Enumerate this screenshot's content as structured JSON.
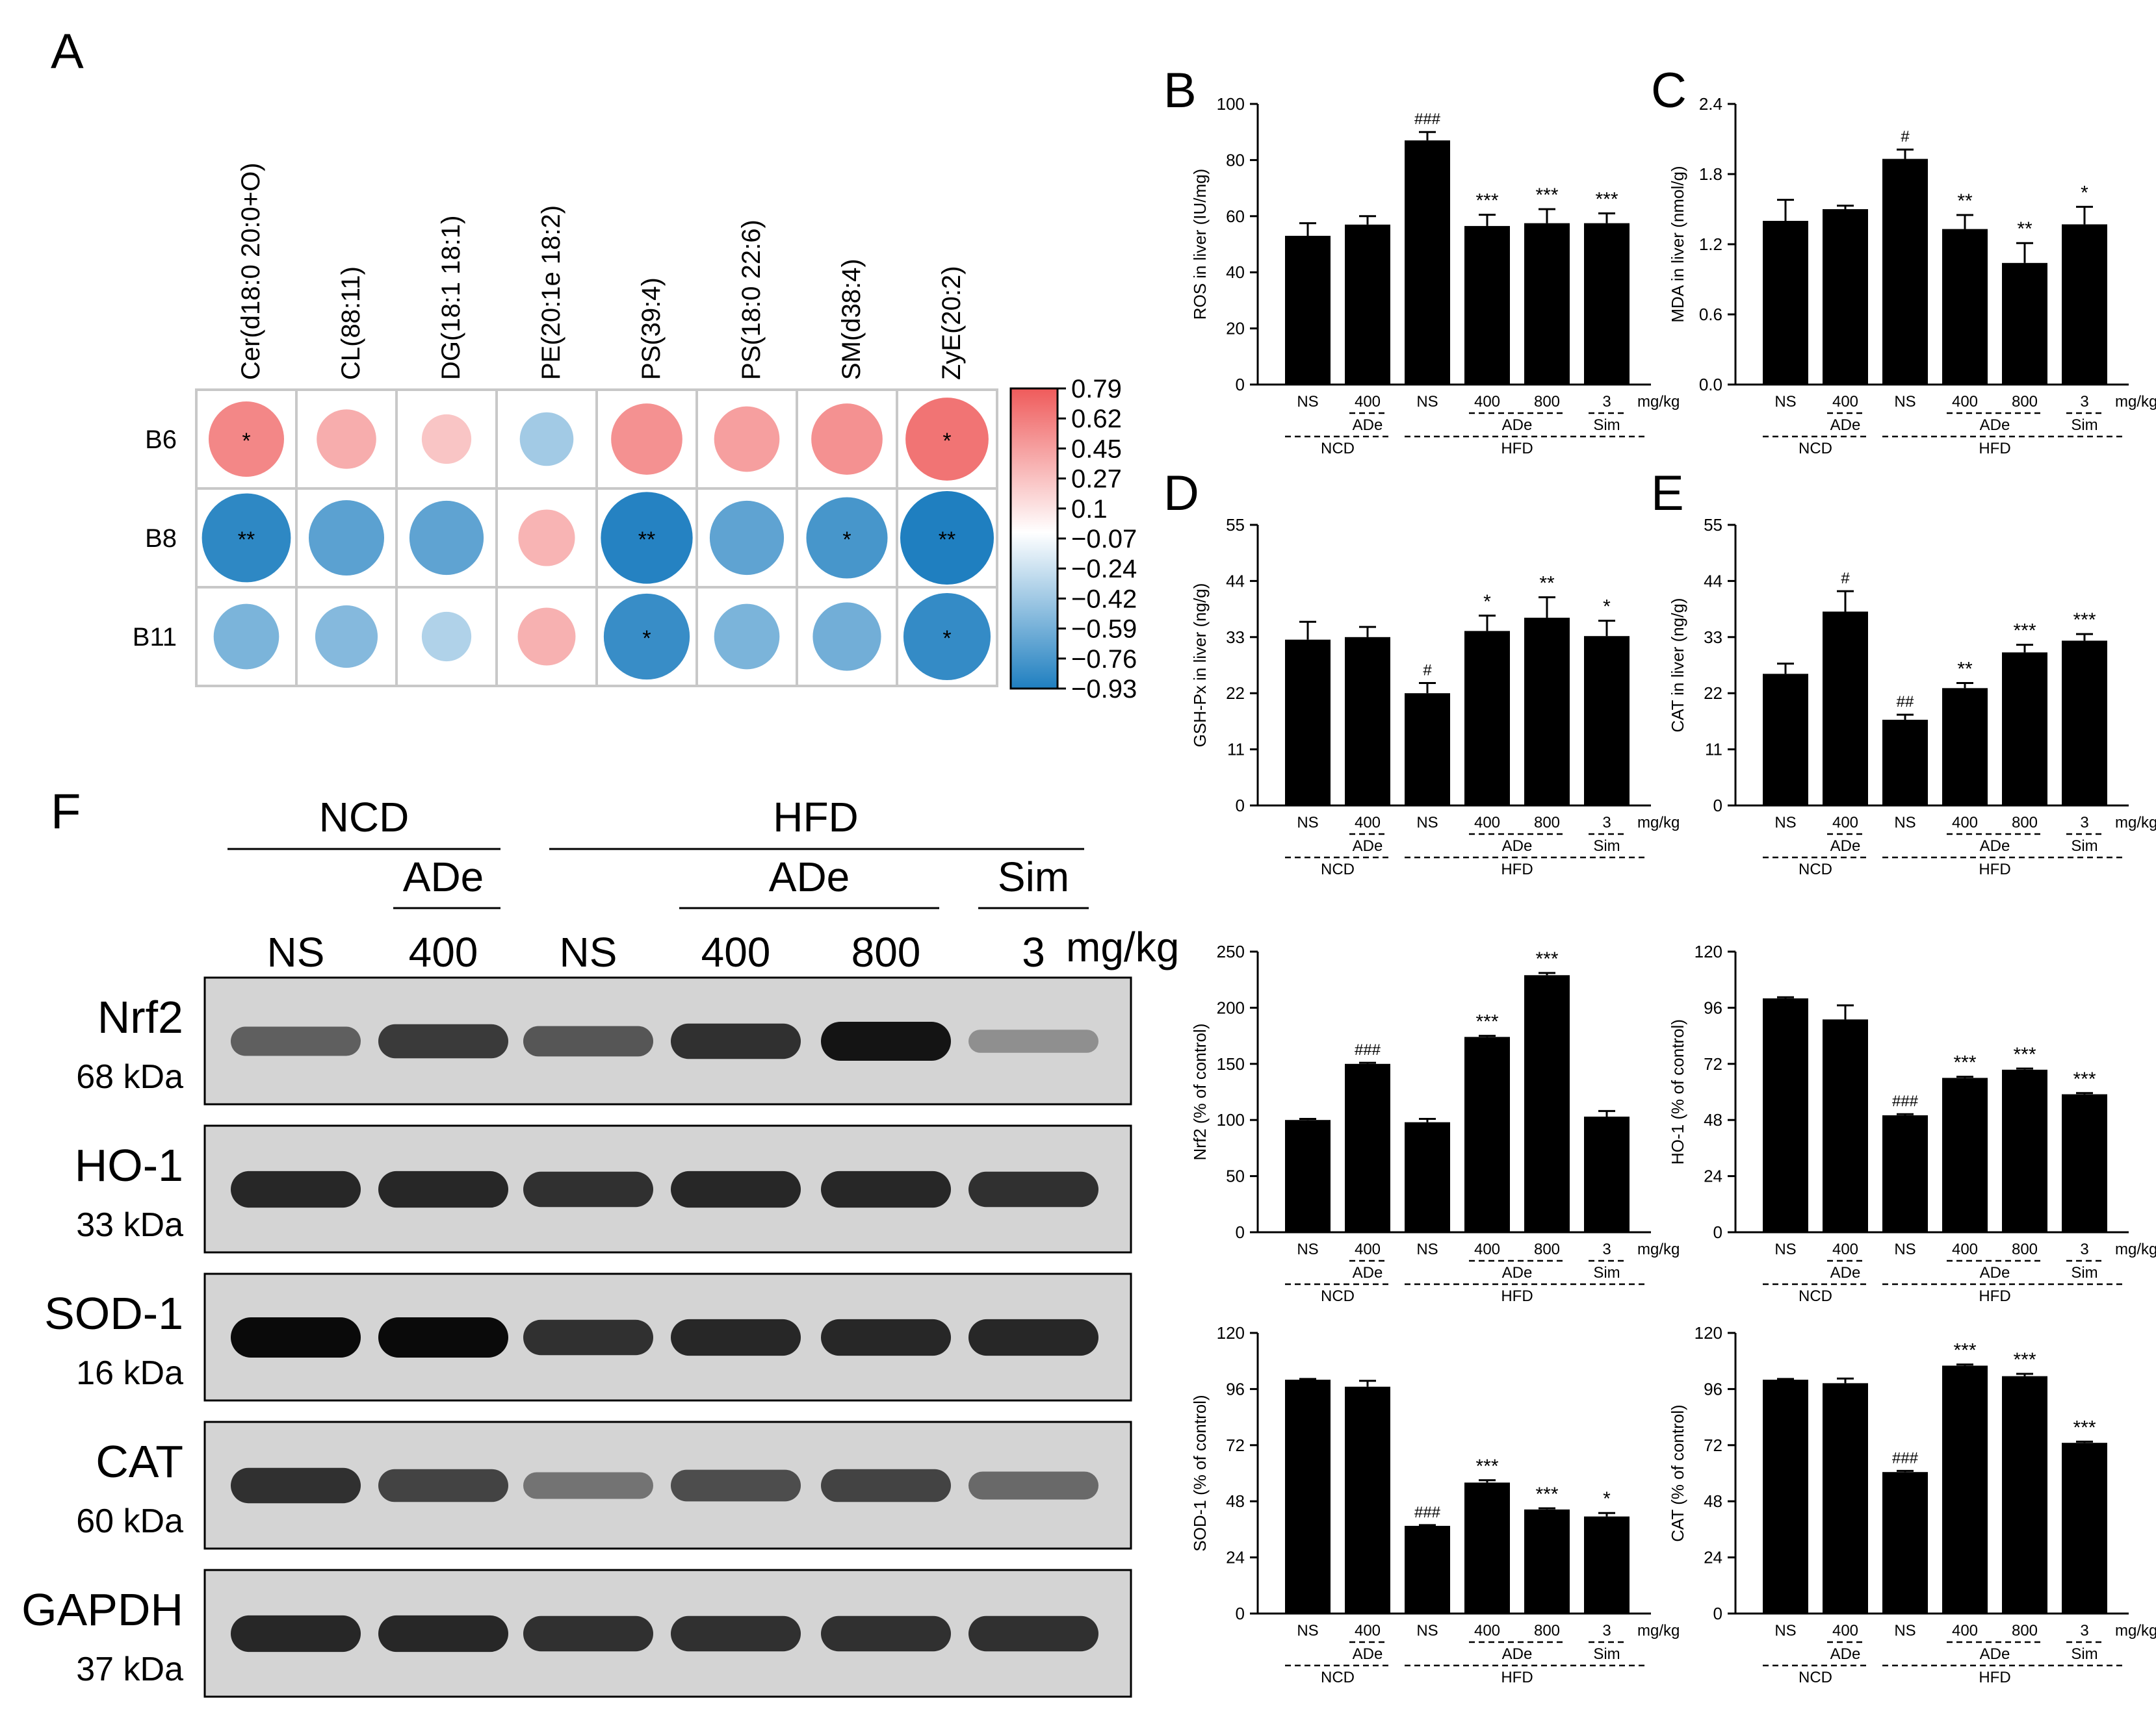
{
  "panel_labels": [
    "A",
    "B",
    "C",
    "D",
    "E",
    "F"
  ],
  "heatmap": {
    "columns": [
      "Cer(d18:0 20:0+O)",
      "CL(88:11)",
      "DG(18:1 18:1)",
      "PE(20:1e 18:2)",
      "PS(39:4)",
      "PS(18:0 22:6)",
      "SM(d38:4)",
      "ZyE(20:2)"
    ],
    "rows": [
      "B6",
      "B8",
      "B11"
    ],
    "values": [
      [
        0.62,
        0.35,
        0.18,
        -0.25,
        0.55,
        0.45,
        0.55,
        0.75
      ],
      [
        -0.85,
        -0.62,
        -0.6,
        0.3,
        -0.9,
        -0.6,
        -0.72,
        -0.93
      ],
      [
        -0.45,
        -0.4,
        -0.18,
        0.32,
        -0.8,
        -0.45,
        -0.5,
        -0.82
      ]
    ],
    "stars": [
      [
        "*",
        "",
        "",
        "",
        "",
        "",
        "",
        "*"
      ],
      [
        "**",
        "",
        "",
        "",
        "**",
        "",
        "*",
        "**"
      ],
      [
        "",
        "",
        "",
        "",
        "*",
        "",
        "",
        "*"
      ]
    ],
    "colorbar_ticks": [
      "0.79",
      "0.62",
      "0.45",
      "0.27",
      "0.1",
      "−0.07",
      "−0.24",
      "−0.42",
      "−0.59",
      "−0.76",
      "−0.93"
    ],
    "colors": {
      "positive": "#ef5b5b",
      "negative": "#1f7fc0",
      "neutral": "#ffffff"
    }
  },
  "group_labels": {
    "doses": [
      "NS",
      "400",
      "NS",
      "400",
      "800",
      "3"
    ],
    "unit": "mg/kg",
    "ade": "ADe",
    "sim": "Sim",
    "ncd": "NCD",
    "hfd": "HFD"
  },
  "western": {
    "header_groups": [
      "NCD",
      "HFD"
    ],
    "header_sub": [
      "ADe",
      "ADe",
      "Sim"
    ],
    "lanes": [
      "NS",
      "400",
      "NS",
      "400",
      "800",
      "3"
    ],
    "unit": "mg/kg",
    "proteins": [
      {
        "name": "Nrf2",
        "kda": "68 kDa",
        "intensity": [
          0.55,
          0.75,
          0.6,
          0.8,
          0.95,
          0.3
        ]
      },
      {
        "name": "HO-1",
        "kda": "33 kDa",
        "intensity": [
          0.85,
          0.85,
          0.8,
          0.85,
          0.85,
          0.8
        ]
      },
      {
        "name": "SOD-1",
        "kda": "16 kDa",
        "intensity": [
          1.0,
          1.0,
          0.8,
          0.85,
          0.85,
          0.85
        ]
      },
      {
        "name": "CAT",
        "kda": "60 kDa",
        "intensity": [
          0.8,
          0.7,
          0.45,
          0.65,
          0.7,
          0.5
        ]
      },
      {
        "name": "GAPDH",
        "kda": "37 kDa",
        "intensity": [
          0.85,
          0.85,
          0.8,
          0.8,
          0.8,
          0.8
        ]
      }
    ]
  },
  "chart_data": [
    {
      "id": "B",
      "type": "bar",
      "ylabel": "ROS in liver (IU/mg)",
      "ylim": [
        0,
        100
      ],
      "ticks": [
        "0",
        "20",
        "40",
        "60",
        "80",
        "100"
      ],
      "values": [
        53,
        57,
        87,
        56.5,
        57.5,
        57.5
      ],
      "errors": [
        4.5,
        3,
        3,
        4,
        5,
        3.5
      ],
      "annotations": [
        "",
        "",
        "###",
        "***",
        "***",
        "***"
      ]
    },
    {
      "id": "C",
      "type": "bar",
      "ylabel": "MDA in liver (nmol/g)",
      "ylim": [
        0,
        2.4
      ],
      "ticks": [
        "0.0",
        "0.6",
        "1.2",
        "1.8",
        "2.4"
      ],
      "values": [
        1.4,
        1.5,
        1.93,
        1.33,
        1.04,
        1.37
      ],
      "errors": [
        0.18,
        0.03,
        0.08,
        0.12,
        0.17,
        0.15
      ],
      "annotations": [
        "",
        "",
        "#",
        "**",
        "**",
        "*"
      ]
    },
    {
      "id": "D",
      "type": "bar",
      "ylabel": "GSH-Px in liver (ng/g)",
      "ylim": [
        0,
        55
      ],
      "ticks": [
        "0",
        "11",
        "22",
        "33",
        "44",
        "55"
      ],
      "values": [
        32.5,
        33,
        22,
        34.2,
        36.8,
        33.2
      ],
      "errors": [
        3.5,
        2,
        2,
        3,
        4,
        3
      ],
      "annotations": [
        "",
        "",
        "#",
        "*",
        "**",
        "*"
      ]
    },
    {
      "id": "E",
      "type": "bar",
      "ylabel": "CAT in liver (ng/g)",
      "ylim": [
        0,
        55
      ],
      "ticks": [
        "0",
        "11",
        "22",
        "33",
        "44",
        "55"
      ],
      "values": [
        25.8,
        38,
        16.8,
        23,
        30,
        32.3
      ],
      "errors": [
        2,
        4,
        1,
        1,
        1.5,
        1.3
      ],
      "annotations": [
        "",
        "#",
        "##",
        "**",
        "***",
        "***"
      ]
    },
    {
      "id": "Nrf2",
      "type": "bar",
      "ylabel": "Nrf2 (% of control)",
      "ylim": [
        0,
        250
      ],
      "ticks": [
        "0",
        "50",
        "100",
        "150",
        "200",
        "250"
      ],
      "values": [
        100,
        150,
        98,
        174,
        229,
        103
      ],
      "errors": [
        1,
        1,
        3,
        1,
        2,
        5
      ],
      "annotations": [
        "",
        "###",
        "",
        "***",
        "***",
        ""
      ]
    },
    {
      "id": "HO-1",
      "type": "bar",
      "ylabel": "HO-1 (% of control)",
      "ylim": [
        0,
        120
      ],
      "ticks": [
        "0",
        "24",
        "48",
        "72",
        "96",
        "120"
      ],
      "values": [
        100,
        91,
        50,
        66,
        69.5,
        59
      ],
      "errors": [
        0.5,
        6,
        0.5,
        0.5,
        0.5,
        0.5
      ],
      "annotations": [
        "",
        "",
        "###",
        "***",
        "***",
        "***"
      ]
    },
    {
      "id": "SOD-1",
      "type": "bar",
      "ylabel": "SOD-1 (% of control)",
      "ylim": [
        0,
        120
      ],
      "ticks": [
        "0",
        "24",
        "48",
        "72",
        "96",
        "120"
      ],
      "values": [
        100,
        97,
        37.5,
        56,
        44.5,
        41.5
      ],
      "errors": [
        0.3,
        2.5,
        0.3,
        1,
        0.5,
        1.5
      ],
      "annotations": [
        "",
        "",
        "###",
        "***",
        "***",
        "*"
      ]
    },
    {
      "id": "CAT-WB",
      "type": "bar",
      "ylabel": "CAT (% of control)",
      "ylim": [
        0,
        120
      ],
      "ticks": [
        "0",
        "24",
        "48",
        "72",
        "96",
        "120"
      ],
      "values": [
        100,
        98.5,
        60.5,
        106,
        101.5,
        73
      ],
      "errors": [
        0.3,
        2,
        0.5,
        0.5,
        1,
        0.5
      ],
      "annotations": [
        "",
        "",
        "###",
        "***",
        "***",
        "***"
      ]
    }
  ]
}
